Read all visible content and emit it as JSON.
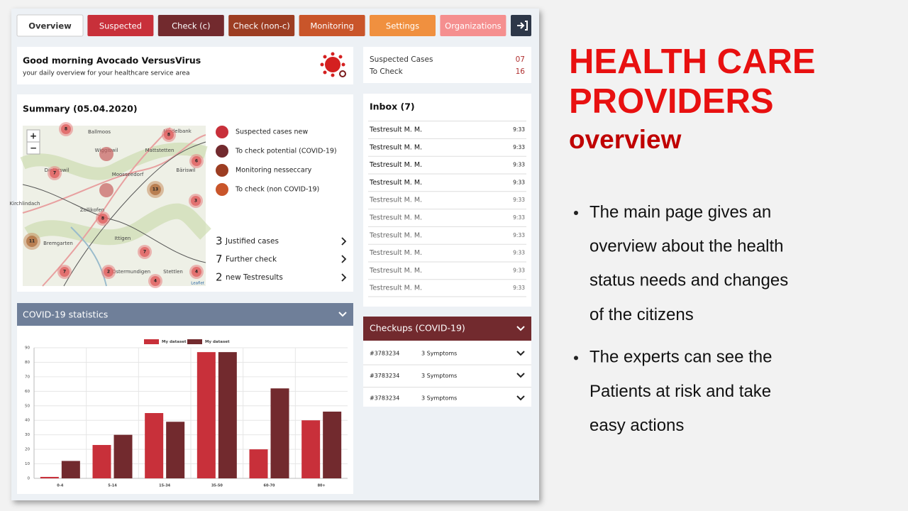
{
  "tabs": [
    "Overview",
    "Suspected",
    "Check (c)",
    "Check (non-c)",
    "Monitoring",
    "Settings",
    "Organizations"
  ],
  "greeting": {
    "title": "Good morning Avocado VersusVirus",
    "subtitle": "your daily overview for your healthcare service area"
  },
  "cases": [
    {
      "label": "Suspected Cases",
      "value": "07"
    },
    {
      "label": "To Check",
      "value": "16"
    }
  ],
  "summary": {
    "title": "Summary (05.04.2020)",
    "legend": [
      "Suspected cases new",
      "To check potential (COVID-19)",
      "Monitoring nesseccary",
      "To check (non COVID-19)"
    ],
    "stats": [
      {
        "count": 3,
        "label": "Justified cases"
      },
      {
        "count": 7,
        "label": "Further check"
      },
      {
        "count": 2,
        "label": "new Testresults"
      }
    ],
    "map": {
      "zoom": [
        "+",
        "−"
      ],
      "places": [
        "Ballmoos",
        "Hindelbank",
        "Mattstetten",
        "Wiggiswil",
        "Moosseedorf",
        "Bäriswil",
        "Dieterswil",
        "Kirchlindach",
        "Zollikofen",
        "Bremgarten",
        "Ittigen",
        "Ostermundigen",
        "Stettlen"
      ],
      "clusters": [
        "8",
        "8",
        "7",
        "6",
        "13",
        "3",
        "8",
        "11",
        "7",
        "7",
        "2",
        "4",
        "4"
      ],
      "attribution": "Leaflet"
    }
  },
  "inbox": {
    "title": "Inbox (7)",
    "rows": [
      {
        "name": "Testresult M. M.",
        "time": "9:33"
      },
      {
        "name": "Testresult M. M.",
        "time": "9:33"
      },
      {
        "name": "Testresult M. M.",
        "time": "9:33"
      },
      {
        "name": "Testresult M. M.",
        "time": "9:33"
      },
      {
        "name": "Testresult M. M.",
        "time": "9:33"
      },
      {
        "name": "Testresult M. M.",
        "time": "9:33"
      },
      {
        "name": "Testresult M. M.",
        "time": "9:33"
      },
      {
        "name": "Testresult M. M.",
        "time": "9:33"
      },
      {
        "name": "Testresult M. M.",
        "time": "9:33"
      },
      {
        "name": "Testresult M. M.",
        "time": "9:33"
      }
    ]
  },
  "statistics": {
    "title": "COVID-19 statistics"
  },
  "chart_data": {
    "type": "bar",
    "categories": [
      "0-4",
      "5-14",
      "15-34",
      "35-50",
      "60-70",
      "80+"
    ],
    "series": [
      {
        "name": "My dataset",
        "color": "#c8303a",
        "values": [
          1,
          23,
          45,
          87,
          20,
          40
        ]
      },
      {
        "name": "My dataset",
        "color": "#722a2e",
        "values": [
          12,
          30,
          39,
          87,
          62,
          46
        ]
      }
    ],
    "ylim": [
      0,
      90
    ],
    "yticks": [
      0,
      10,
      20,
      30,
      40,
      50,
      60,
      70,
      80,
      90
    ],
    "grid": true
  },
  "checkups": {
    "title": "Checkups (COVID-19)",
    "rows": [
      {
        "id": "#3783234",
        "symptoms": "3 Symptoms"
      },
      {
        "id": "#3783234",
        "symptoms": "3 Symptoms"
      },
      {
        "id": "#3783234",
        "symptoms": "3 Symptoms"
      }
    ]
  },
  "slide": {
    "title_lines": [
      "HEALTH CARE",
      "PROVIDERS"
    ],
    "subtitle": "overview",
    "bullets": [
      [
        "The main page gives an",
        "overview about the health",
        "status needs and changes",
        "of the citizens"
      ],
      [
        "The experts can see the",
        "Patients at risk and take",
        "easy actions"
      ]
    ]
  }
}
